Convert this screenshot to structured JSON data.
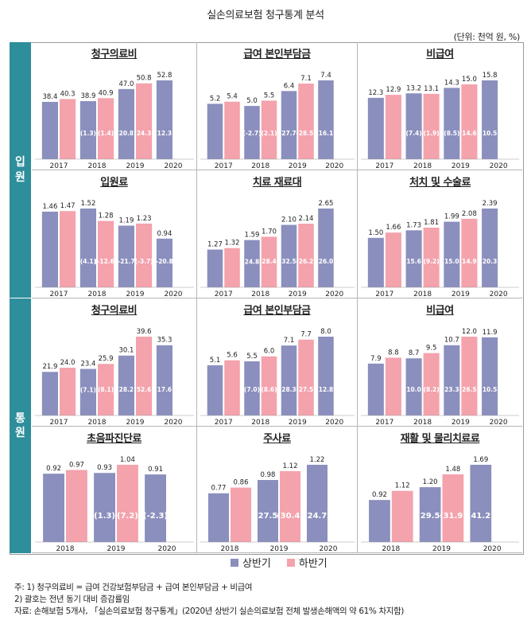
{
  "title": "실손의료보험 청구통계 분석",
  "unit_label": "(단위: 천억 원, %)",
  "sections": [
    {
      "label_chars": [
        "입",
        "원"
      ]
    },
    {
      "label_chars": [
        "통",
        "원"
      ]
    }
  ],
  "legend": {
    "first": "상반기",
    "second": "하반기"
  },
  "colors": {
    "first_half": "#8b8fbd",
    "second_half": "#f4a2ac",
    "side_bar": "#2e8e9b"
  },
  "notes": [
    "주:  1)  청구의료비 = 급여 건강보험부담금 + 급여 본인부담금 + 비급여",
    "       2)  괄호는 전년 동기 대비 증감률임",
    "자료:  손해보험 5개사, 「실손의료보험 청구통계」(2020년 상반기 실손의료보험 전체 발생손해액의 약 61% 차지함)"
  ],
  "chart_data": [
    {
      "type": "bar",
      "title": "청구의료비",
      "group": "입원",
      "categories": [
        "2017",
        "2018",
        "2019",
        "2020"
      ],
      "series": [
        {
          "name": "상반기",
          "values": [
            38.4,
            38.9,
            47.0,
            52.8
          ],
          "labels": [
            "38.4",
            "38.9",
            "47.0",
            "52.8"
          ],
          "changes": [
            "",
            "(1.3)",
            "(20.8)",
            "(12.3)"
          ]
        },
        {
          "name": "하반기",
          "values": [
            40.3,
            40.9,
            50.8,
            null
          ],
          "labels": [
            "40.3",
            "40.9",
            "50.8",
            ""
          ],
          "changes": [
            "",
            "(1.4)",
            "(24.3)",
            ""
          ]
        }
      ]
    },
    {
      "type": "bar",
      "title": "급여 본인부담금",
      "group": "입원",
      "categories": [
        "2017",
        "2018",
        "2019",
        "2020"
      ],
      "series": [
        {
          "name": "상반기",
          "values": [
            5.2,
            5.0,
            6.4,
            7.4
          ],
          "labels": [
            "5.2",
            "5.0",
            "6.4",
            "7.4"
          ],
          "changes": [
            "",
            "(-2.7)",
            "(27.7)",
            "(16.1)"
          ]
        },
        {
          "name": "하반기",
          "values": [
            5.4,
            5.5,
            7.1,
            null
          ],
          "labels": [
            "5.4",
            "5.5",
            "7.1",
            ""
          ],
          "changes": [
            "",
            "(2.1)",
            "(28.5)",
            ""
          ]
        }
      ]
    },
    {
      "type": "bar",
      "title": "비급여",
      "group": "입원",
      "categories": [
        "2017",
        "2018",
        "2019",
        "2020"
      ],
      "series": [
        {
          "name": "상반기",
          "values": [
            12.3,
            13.2,
            14.3,
            15.8
          ],
          "labels": [
            "12.3",
            "13.2",
            "14.3",
            "15.8"
          ],
          "changes": [
            "",
            "(7.4)",
            "(8.5)",
            "(10.5)"
          ]
        },
        {
          "name": "하반기",
          "values": [
            12.9,
            13.1,
            15.0,
            null
          ],
          "labels": [
            "12.9",
            "13.1",
            "15.0",
            ""
          ],
          "changes": [
            "",
            "(1.9)",
            "(14.6)",
            ""
          ]
        }
      ]
    },
    {
      "type": "bar",
      "title": "입원료",
      "group": "입원",
      "categories": [
        "2017",
        "2018",
        "2019",
        "2020"
      ],
      "series": [
        {
          "name": "상반기",
          "values": [
            1.46,
            1.52,
            1.19,
            0.94
          ],
          "labels": [
            "1.46",
            "1.52",
            "1.19",
            "0.94"
          ],
          "changes": [
            "",
            "(4.1)",
            "(-21.7)",
            "(-20.8)"
          ]
        },
        {
          "name": "하반기",
          "values": [
            1.47,
            1.28,
            1.23,
            null
          ],
          "labels": [
            "1.47",
            "1.28",
            "1.23",
            ""
          ],
          "changes": [
            "",
            "(-12.6)",
            "(-3.7)",
            ""
          ]
        }
      ]
    },
    {
      "type": "bar",
      "title": "치료 재료대",
      "group": "입원",
      "categories": [
        "2017",
        "2018",
        "2019",
        "2020"
      ],
      "series": [
        {
          "name": "상반기",
          "values": [
            1.27,
            1.59,
            2.1,
            2.65
          ],
          "labels": [
            "1.27",
            "1.59",
            "2.10",
            "2.65"
          ],
          "changes": [
            "",
            "(24.8)",
            "(32.5)",
            "(26.0)"
          ]
        },
        {
          "name": "하반기",
          "values": [
            1.32,
            1.7,
            2.14,
            null
          ],
          "labels": [
            "1.32",
            "1.70",
            "2.14",
            ""
          ],
          "changes": [
            "",
            "(28.4)",
            "(26.2)",
            ""
          ]
        }
      ]
    },
    {
      "type": "bar",
      "title": "처치 및 수술료",
      "group": "입원",
      "categories": [
        "2017",
        "2018",
        "2019",
        "2020"
      ],
      "series": [
        {
          "name": "상반기",
          "values": [
            1.5,
            1.73,
            1.99,
            2.39
          ],
          "labels": [
            "1.50",
            "1.73",
            "1.99",
            "2.39"
          ],
          "changes": [
            "",
            "(15.6)",
            "(15.0)",
            "(20.3)"
          ]
        },
        {
          "name": "하반기",
          "values": [
            1.66,
            1.81,
            2.08,
            null
          ],
          "labels": [
            "1.66",
            "1.81",
            "2.08",
            ""
          ],
          "changes": [
            "",
            "(9.2)",
            "(14.9)",
            ""
          ]
        }
      ]
    },
    {
      "type": "bar",
      "title": "청구의료비",
      "group": "통원",
      "categories": [
        "2017",
        "2018",
        "2019",
        "2020"
      ],
      "series": [
        {
          "name": "상반기",
          "values": [
            21.9,
            23.4,
            30.1,
            35.3
          ],
          "labels": [
            "21.9",
            "23.4",
            "30.1",
            "35.3"
          ],
          "changes": [
            "",
            "(7.1)",
            "(28.2)",
            "(17.6)"
          ]
        },
        {
          "name": "하반기",
          "values": [
            24.0,
            25.9,
            39.6,
            null
          ],
          "labels": [
            "24.0",
            "25.9",
            "39.6",
            ""
          ],
          "changes": [
            "",
            "(8.1)",
            "(52.6)",
            ""
          ]
        }
      ]
    },
    {
      "type": "bar",
      "title": "급여 본인부담금",
      "group": "통원",
      "categories": [
        "2017",
        "2018",
        "2019",
        "2020"
      ],
      "series": [
        {
          "name": "상반기",
          "values": [
            5.1,
            5.5,
            7.1,
            8.0
          ],
          "labels": [
            "5.1",
            "5.5",
            "7.1",
            "8.0"
          ],
          "changes": [
            "",
            "(7.0)",
            "(28.3)",
            "(12.8)"
          ]
        },
        {
          "name": "하반기",
          "values": [
            5.6,
            6.0,
            7.7,
            null
          ],
          "labels": [
            "5.6",
            "6.0",
            "7.7",
            ""
          ],
          "changes": [
            "",
            "(8.6)",
            "(27.5)",
            ""
          ]
        }
      ]
    },
    {
      "type": "bar",
      "title": "비급여",
      "group": "통원",
      "categories": [
        "2017",
        "2018",
        "2019",
        "2020"
      ],
      "series": [
        {
          "name": "상반기",
          "values": [
            7.9,
            8.7,
            10.7,
            11.9
          ],
          "labels": [
            "7.9",
            "8.7",
            "10.7",
            "11.9"
          ],
          "changes": [
            "",
            "(10.0)",
            "(23.3)",
            "(10.5)"
          ]
        },
        {
          "name": "하반기",
          "values": [
            8.8,
            9.5,
            12.0,
            null
          ],
          "labels": [
            "8.8",
            "9.5",
            "12.0",
            ""
          ],
          "changes": [
            "",
            "(8.2)",
            "(26.5)",
            ""
          ]
        }
      ]
    },
    {
      "type": "bar",
      "title": "초음파진단료",
      "group": "통원",
      "categories": [
        "2018",
        "2019",
        "2020"
      ],
      "series": [
        {
          "name": "상반기",
          "values": [
            0.92,
            0.93,
            0.91
          ],
          "labels": [
            "0.92",
            "0.93",
            "0.91"
          ],
          "changes": [
            "",
            "(1.3)",
            "(-2.3)"
          ]
        },
        {
          "name": "하반기",
          "values": [
            0.97,
            1.04,
            null
          ],
          "labels": [
            "0.97",
            "1.04",
            ""
          ],
          "changes": [
            "",
            "(7.2)",
            ""
          ]
        }
      ]
    },
    {
      "type": "bar",
      "title": "주사료",
      "group": "통원",
      "categories": [
        "2018",
        "2019",
        "2020"
      ],
      "series": [
        {
          "name": "상반기",
          "values": [
            0.77,
            0.98,
            1.22
          ],
          "labels": [
            "0.77",
            "0.98",
            "1.22"
          ],
          "changes": [
            "",
            "(27.5)",
            "(24.7)"
          ]
        },
        {
          "name": "하반기",
          "values": [
            0.86,
            1.12,
            null
          ],
          "labels": [
            "0.86",
            "1.12",
            ""
          ],
          "changes": [
            "",
            "(30.4)",
            ""
          ]
        }
      ]
    },
    {
      "type": "bar",
      "title": "재활 및 물리치료료",
      "group": "통원",
      "categories": [
        "2018",
        "2019",
        "2020"
      ],
      "series": [
        {
          "name": "상반기",
          "values": [
            0.92,
            1.2,
            1.69
          ],
          "labels": [
            "0.92",
            "1.20",
            "1.69"
          ],
          "changes": [
            "",
            "(29.5)",
            "(41.2)"
          ]
        },
        {
          "name": "하반기",
          "values": [
            1.12,
            1.48,
            null
          ],
          "labels": [
            "1.12",
            "1.48",
            ""
          ],
          "changes": [
            "",
            "(31.9)",
            ""
          ]
        }
      ]
    }
  ]
}
